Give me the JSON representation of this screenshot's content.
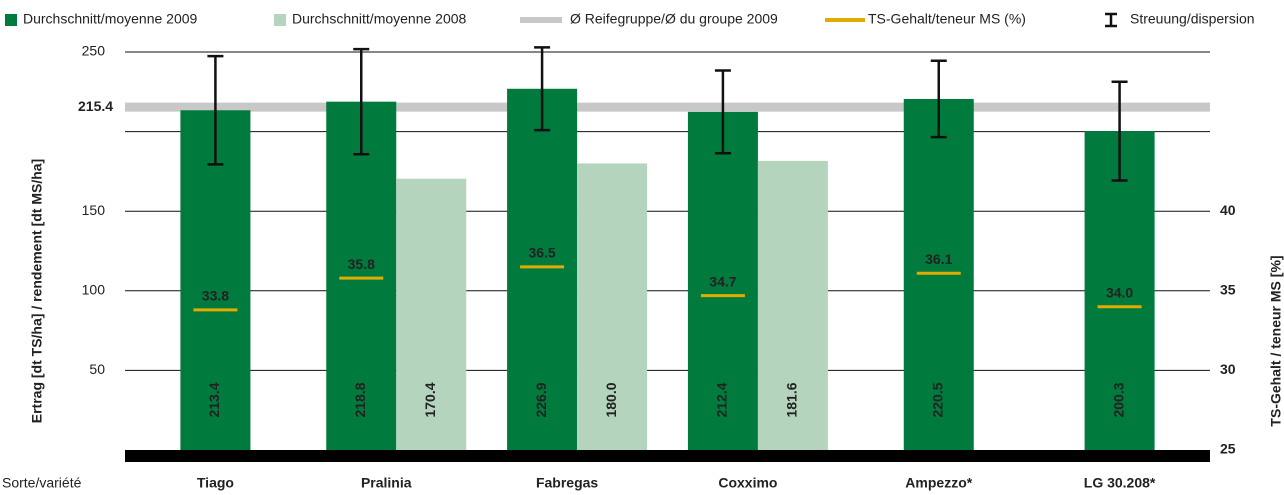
{
  "chart_data": {
    "type": "bar",
    "categories": [
      "Tiago",
      "Pralinia",
      "Fabregas",
      "Coxximo",
      "Ampezzo*",
      "LG 30.208*"
    ],
    "xlabel": "Sorte/variété",
    "ylabel": "Ertrag [dt TS/ha] / rendement [dt MS/ha]",
    "y2label": "TS-Gehalt / teneur MS [%]",
    "ylim": [
      0,
      250
    ],
    "yticks": [
      50,
      100,
      150,
      250
    ],
    "grid_lines": [
      50,
      100,
      150,
      200,
      250
    ],
    "y2lim": [
      25,
      50
    ],
    "y2ticks": [
      25,
      30,
      35,
      40
    ],
    "series": [
      {
        "name": "Durchschnitt/moyenne 2009",
        "color": "#007a3d",
        "values": [
          213.4,
          218.8,
          226.9,
          212.4,
          220.5,
          200.3
        ],
        "value_labels": [
          "213.4",
          "218.8",
          "226.9",
          "212.4",
          "220.5",
          "200.3"
        ],
        "errors": [
          34,
          33,
          26,
          26,
          24,
          31
        ],
        "error_name": "Streuung/dispersion"
      },
      {
        "name": "Durchschnitt/moyenne 2008",
        "color": "#b5d4be",
        "values": [
          null,
          170.4,
          180.0,
          181.6,
          null,
          null
        ],
        "value_labels": [
          null,
          "170.4",
          "180.0",
          "181.6",
          null,
          null
        ]
      },
      {
        "name": "TS-Gehalt/teneur MS (%)",
        "color": "#e0ac00",
        "axis": "y2",
        "values": [
          33.8,
          35.8,
          36.5,
          34.7,
          36.1,
          34.0
        ],
        "value_labels": [
          "33.8",
          "35.8",
          "36.5",
          "34.7",
          "36.1",
          "34.0"
        ]
      }
    ],
    "reference": {
      "name": "Ø Reifegruppe/Ø du groupe 2009",
      "value": 215.4,
      "color": "#c8c8c8"
    }
  }
}
